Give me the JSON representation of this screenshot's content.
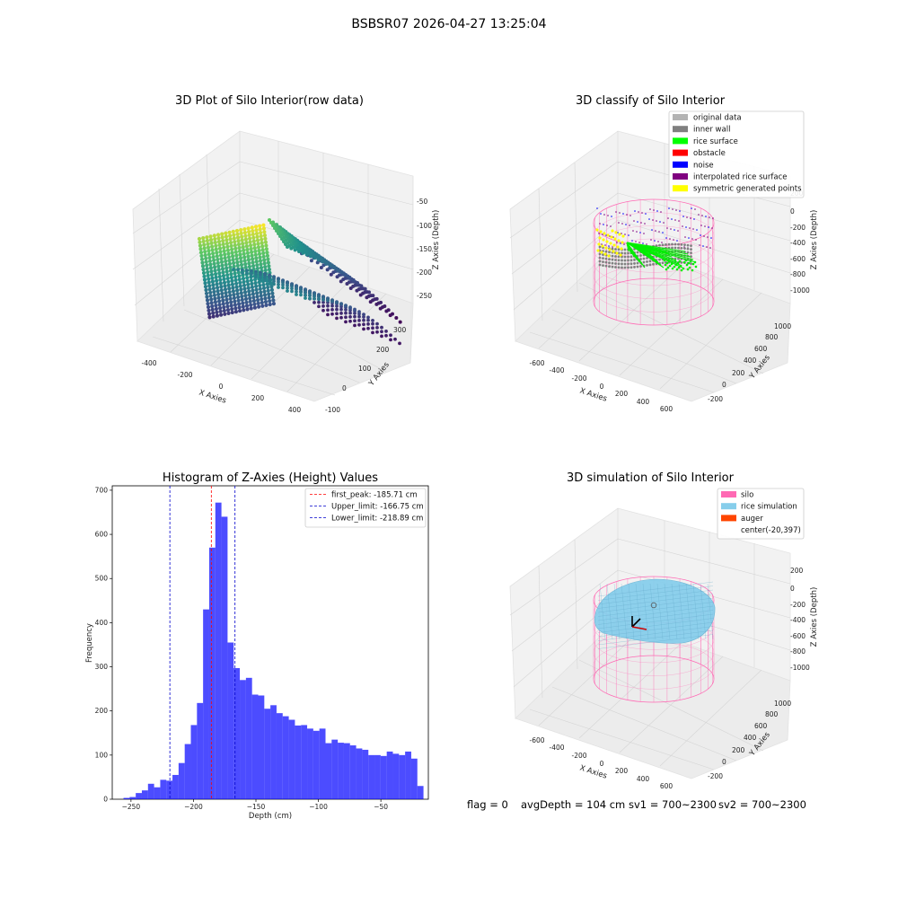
{
  "figure": {
    "suptitle": "BSBSR07 2026-04-27 13:25:04",
    "status": {
      "flag": "flag = 0",
      "avg_depth": "avgDepth = 104 cm",
      "sv1": "sv1 = 700~2300",
      "sv2": "sv2 = 700~2300"
    }
  },
  "plots": {
    "raw": {
      "title": "3D Plot of Silo Interior(row data)",
      "xlabel": "X Axies",
      "ylabel": "Y Axies",
      "zlabel": "Z Axies (Depth)",
      "xticks": [
        "-400",
        "-200",
        "0",
        "200",
        "400"
      ],
      "yticks": [
        "-100",
        "0",
        "100",
        "200",
        "300"
      ],
      "zticks": [
        "-50",
        "-100",
        "-150",
        "-200",
        "-250"
      ],
      "colormap": "viridis"
    },
    "classify": {
      "title": "3D classify of Silo Interior",
      "xlabel": "X Axies",
      "ylabel": "Y Axies",
      "zlabel": "Z Axies (Depth)",
      "xticks": [
        "-600",
        "-400",
        "-200",
        "0",
        "200",
        "400",
        "600"
      ],
      "yticks": [
        "-200",
        "0",
        "200",
        "400",
        "600",
        "800",
        "1000"
      ],
      "zticks": [
        "200",
        "0",
        "-200",
        "-400",
        "-600",
        "-800",
        "-1000"
      ],
      "legend": [
        {
          "label": "original data",
          "color": "#b3b3b3"
        },
        {
          "label": "inner wall",
          "color": "#808080"
        },
        {
          "label": "rice surface",
          "color": "#00ff00"
        },
        {
          "label": "obstacle",
          "color": "#ff0000"
        },
        {
          "label": "noise",
          "color": "#0000ff"
        },
        {
          "label": "interpolated rice surface",
          "color": "#800080"
        },
        {
          "label": "symmetric generated points",
          "color": "#ffff00"
        }
      ]
    },
    "simulation": {
      "title": "3D simulation of Silo Interior",
      "xlabel": "X Axies",
      "ylabel": "Y Axies",
      "zlabel": "Z Axies (Depth)",
      "xticks": [
        "-600",
        "-400",
        "-200",
        "0",
        "200",
        "400",
        "600"
      ],
      "yticks": [
        "-200",
        "0",
        "200",
        "400",
        "600",
        "800",
        "1000"
      ],
      "zticks": [
        "200",
        "0",
        "-200",
        "-400",
        "-600",
        "-800",
        "-1000"
      ],
      "legend": [
        {
          "label": "silo",
          "color": "#ff69b4"
        },
        {
          "label": "rice simulation",
          "color": "#87ceeb"
        },
        {
          "label": "auger",
          "color": "#ff4500"
        },
        {
          "label": "center(-20,397)",
          "color": "none"
        }
      ]
    }
  },
  "chart_data": {
    "type": "bar",
    "title": "Histogram of Z-Axies (Height) Values",
    "xlabel": "Depth (cm)",
    "ylabel": "Frequency",
    "xlim": [
      -265,
      -12
    ],
    "ylim": [
      0,
      710
    ],
    "xticks": [
      -250,
      -200,
      -150,
      -100,
      -50
    ],
    "yticks": [
      0,
      100,
      200,
      300,
      400,
      500,
      600,
      700
    ],
    "bin_width": 4.9,
    "bin_start": -256,
    "counts": [
      3,
      5,
      14,
      20,
      35,
      27,
      44,
      42,
      55,
      82,
      125,
      168,
      218,
      430,
      570,
      672,
      640,
      355,
      297,
      270,
      275,
      237,
      235,
      205,
      213,
      195,
      188,
      180,
      167,
      168,
      160,
      155,
      160,
      127,
      135,
      128,
      127,
      122,
      115,
      112,
      100,
      100,
      98,
      108,
      103,
      100,
      108,
      92,
      30
    ],
    "bar_color": "#0000ff",
    "vlines": [
      {
        "label": "first_peak: -185.71 cm",
        "value": -185.71,
        "color": "#ff0000"
      },
      {
        "label": "Upper_limit: -166.75 cm",
        "value": -166.75,
        "color": "#0000cc"
      },
      {
        "label": "Lower_limit: -218.89 cm",
        "value": -218.89,
        "color": "#0000cc"
      }
    ],
    "legend_position": "top-right"
  }
}
